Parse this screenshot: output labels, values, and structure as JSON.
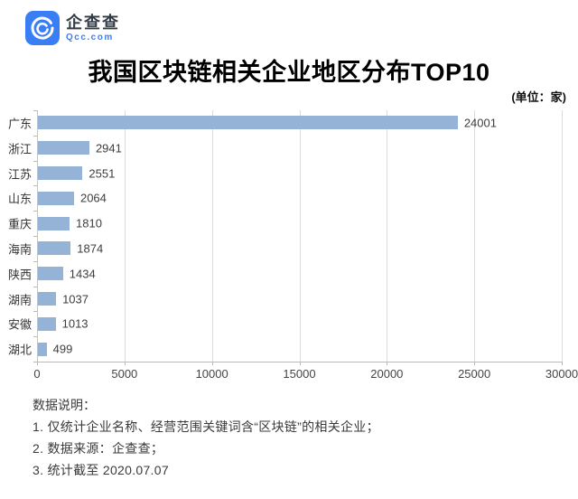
{
  "logo": {
    "name": "企查查",
    "domain": "Qcc.com",
    "brand_color": "#3A7EF5"
  },
  "title": "我国区块链相关企业地区分布TOP10",
  "unit_label": "(单位：家)",
  "chart_data": {
    "type": "bar",
    "orientation": "horizontal",
    "title": "我国区块链相关企业地区分布TOP10",
    "unit": "家",
    "categories": [
      "广东",
      "浙江",
      "江苏",
      "山东",
      "重庆",
      "海南",
      "陕西",
      "湖南",
      "安徽",
      "湖北"
    ],
    "values": [
      24001,
      2941,
      2551,
      2064,
      1810,
      1874,
      1434,
      1037,
      1013,
      499
    ],
    "xlabel": "",
    "ylabel": "",
    "xlim": [
      0,
      30000
    ],
    "x_ticks": [
      0,
      5000,
      10000,
      15000,
      20000,
      25000,
      30000
    ],
    "grid": true,
    "value_labels": true,
    "bar_color": "#95B3D7",
    "gridline_color": "#DCDCDC",
    "legend": "none"
  },
  "notes": {
    "heading": "数据说明：",
    "items": [
      "1. 仅统计企业名称、经营范围关键词含“区块链”的相关企业；",
      "2. 数据来源：企查查；",
      "3. 统计截至 2020.07.07"
    ]
  }
}
